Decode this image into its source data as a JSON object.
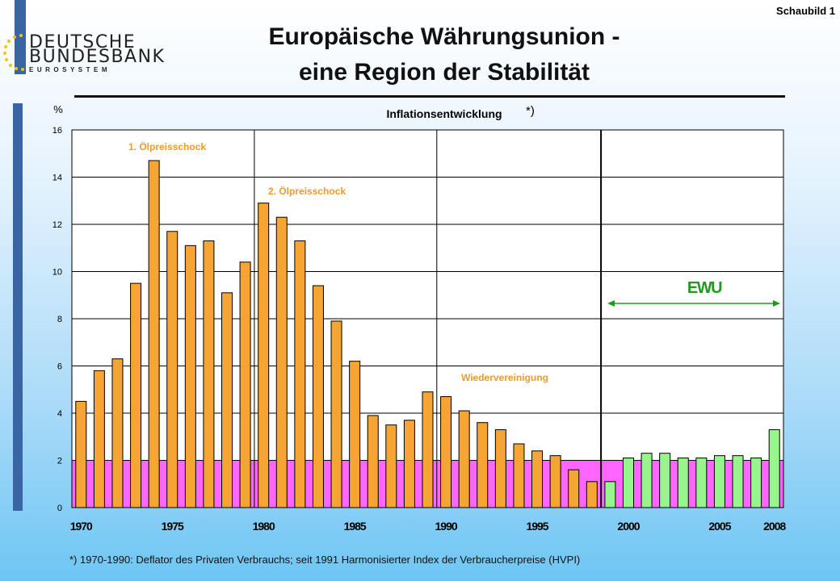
{
  "header": {
    "badge": "Schaubild 1",
    "logo_line1": "DEUTSCHE",
    "logo_line2": "BUNDESBANK",
    "logo_line3": "EUROSYSTEM",
    "title_line1": "Europäische Währungsunion -",
    "title_line2": "eine Region der Stabilität"
  },
  "colors": {
    "pre_emu_bar": "#f6a433",
    "emu_bar": "#98f58e",
    "stability_band": "#ff66ff",
    "annotation": "#f09a2a",
    "emu_arrow": "#1f9a1f"
  },
  "chart_data": {
    "type": "bar",
    "title": "Inflationsentwicklung",
    "title_note": "*)",
    "ylabel": "%",
    "ylim": [
      0,
      16
    ],
    "yticks": [
      0,
      2,
      4,
      6,
      8,
      10,
      12,
      14,
      16
    ],
    "x": [
      1970,
      1971,
      1972,
      1973,
      1974,
      1975,
      1976,
      1977,
      1978,
      1979,
      1980,
      1981,
      1982,
      1983,
      1984,
      1985,
      1986,
      1987,
      1988,
      1989,
      1990,
      1991,
      1992,
      1993,
      1994,
      1995,
      1996,
      1997,
      1998,
      1999,
      2000,
      2001,
      2002,
      2003,
      2004,
      2005,
      2006,
      2007,
      2008
    ],
    "xtick_labels": [
      "1970",
      "1975",
      "1980",
      "1985",
      "1990",
      "1995",
      "2000",
      "2005",
      "2008"
    ],
    "values": [
      4.5,
      5.8,
      6.3,
      9.5,
      14.7,
      11.7,
      11.1,
      11.3,
      9.1,
      10.4,
      12.9,
      12.3,
      11.3,
      9.4,
      7.9,
      6.2,
      3.9,
      3.5,
      3.7,
      4.9,
      4.7,
      4.1,
      3.6,
      3.3,
      2.7,
      2.4,
      2.2,
      1.6,
      1.1,
      1.1,
      2.1,
      2.3,
      2.3,
      2.1,
      2.1,
      2.2,
      2.2,
      2.1,
      3.3
    ],
    "emu_start_year": 1999,
    "stability_band_max": 2,
    "annotations": [
      {
        "text": "1. Ölpreisschock"
      },
      {
        "text": "2. Ölpreisschock"
      },
      {
        "text": "Wiedervereinigung"
      },
      {
        "text": "EWU"
      }
    ],
    "footnote": "*) 1970-1990: Deflator des Privaten Verbrauchs; seit 1991 Harmonisierter Index der Verbraucherpreise (HVPI)"
  }
}
